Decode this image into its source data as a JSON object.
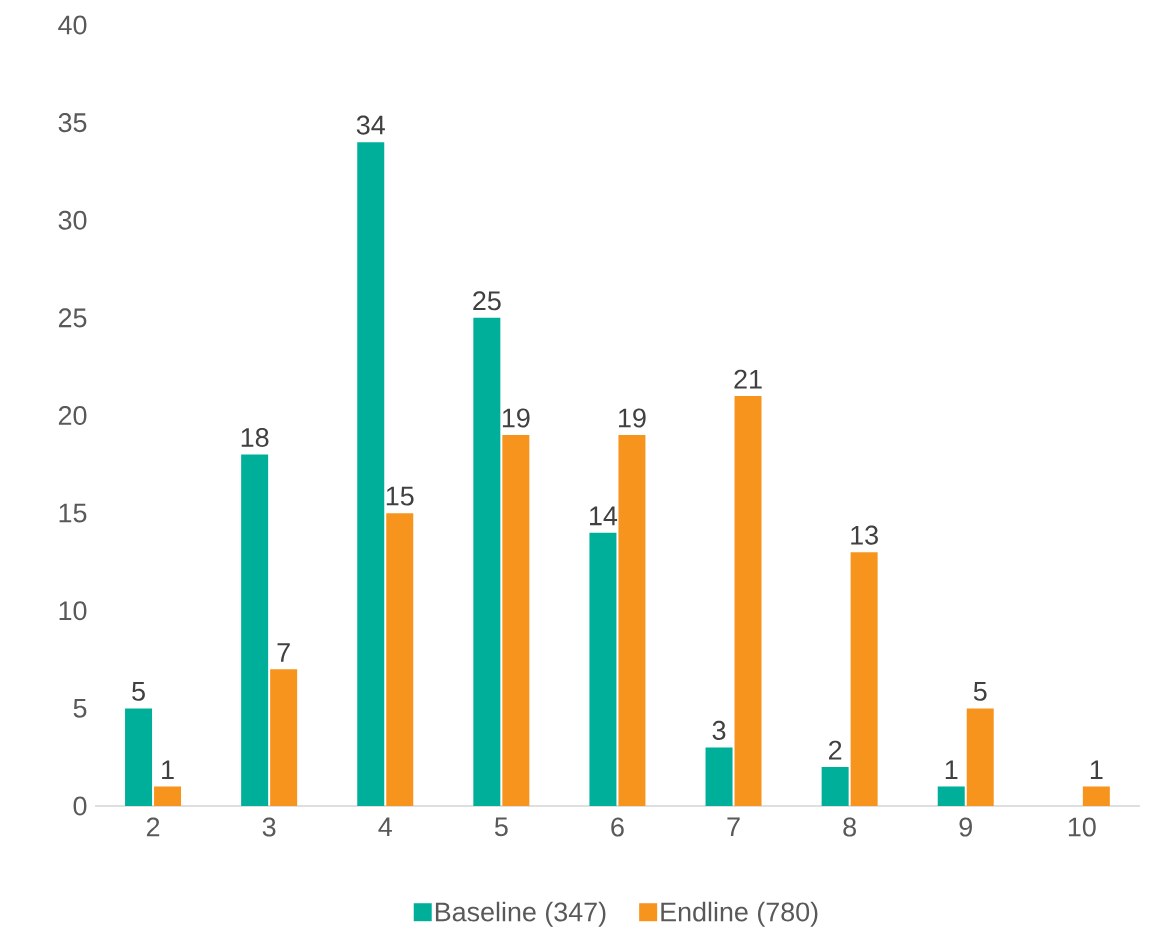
{
  "chart_data": {
    "type": "bar",
    "categories": [
      "2",
      "3",
      "4",
      "5",
      "6",
      "7",
      "8",
      "9",
      "10"
    ],
    "series": [
      {
        "name": "Baseline (347)",
        "color": "#00af9a",
        "values": [
          5,
          18,
          34,
          25,
          14,
          3,
          2,
          1,
          null
        ]
      },
      {
        "name": "Endline (780)",
        "color": "#f7941d",
        "values": [
          1,
          7,
          15,
          19,
          19,
          21,
          13,
          5,
          1
        ]
      }
    ],
    "ylim": [
      0,
      40
    ],
    "yticks": [
      0,
      5,
      10,
      15,
      20,
      25,
      30,
      35,
      40
    ],
    "grid": false,
    "legend": "bottom",
    "data_labels": true
  }
}
